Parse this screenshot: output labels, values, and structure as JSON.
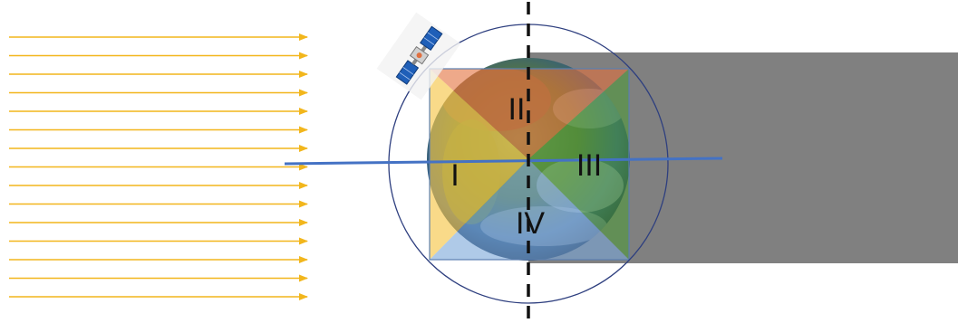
{
  "quadrants": [
    {
      "id": "I",
      "label": "I",
      "color": "#f6c64a"
    },
    {
      "id": "II",
      "label": "II",
      "color": "#e26f3c"
    },
    {
      "id": "III",
      "label": "III",
      "color": "#4f9a3a"
    },
    {
      "id": "IV",
      "label": "IV",
      "color": "#7aa7d9"
    }
  ],
  "colors": {
    "sun_rays": "#f2b61c",
    "shadow": "#808080",
    "sun_line": "#4472c4",
    "orbit": "#2e3f7f",
    "divider": "#111111",
    "satellite_panel": "#1f5fb8"
  },
  "icons": {
    "earth": "earth-globe-icon",
    "satellite": "satellite-icon"
  },
  "scene": {
    "sun_ray_count": 15
  }
}
